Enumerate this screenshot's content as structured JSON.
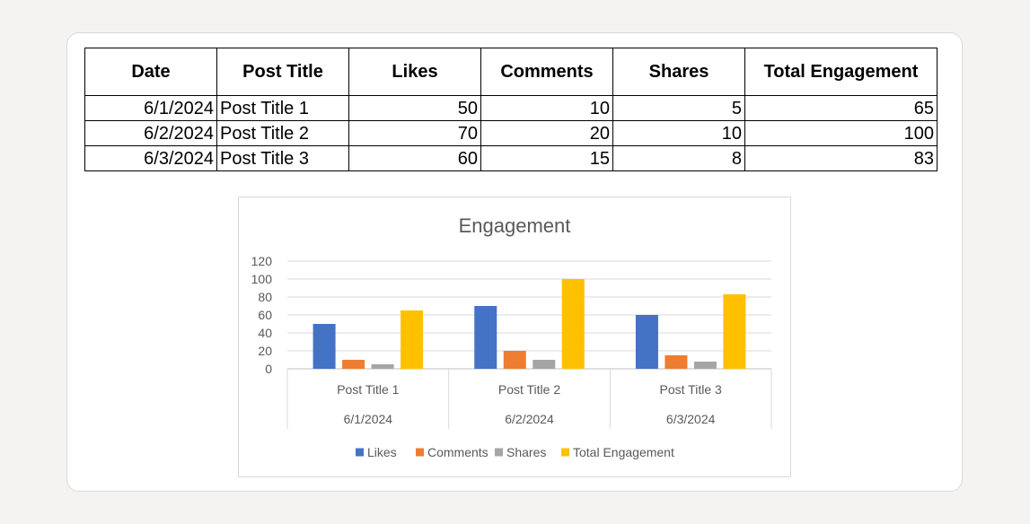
{
  "table": {
    "headers": [
      "Date",
      "Post Title",
      "Likes",
      "Comments",
      "Shares",
      "Total Engagement"
    ],
    "rows": [
      [
        "6/1/2024",
        "Post Title 1",
        "50",
        "10",
        "5",
        "65"
      ],
      [
        "6/2/2024",
        "Post Title 2",
        "70",
        "20",
        "10",
        "100"
      ],
      [
        "6/3/2024",
        "Post Title 3",
        "60",
        "15",
        "8",
        "83"
      ]
    ]
  },
  "chart_data": {
    "type": "bar",
    "title": "Engagement",
    "categories": [
      "Post Title 1",
      "Post Title 2",
      "Post Title 3"
    ],
    "category_dates": [
      "6/1/2024",
      "6/2/2024",
      "6/3/2024"
    ],
    "series": [
      {
        "name": "Likes",
        "values": [
          50,
          70,
          60
        ],
        "color": "#4472c4"
      },
      {
        "name": "Comments",
        "values": [
          10,
          20,
          15
        ],
        "color": "#ed7d31"
      },
      {
        "name": "Shares",
        "values": [
          5,
          10,
          8
        ],
        "color": "#a5a5a5"
      },
      {
        "name": "Total Engagement",
        "values": [
          65,
          100,
          83
        ],
        "color": "#ffc000"
      }
    ],
    "ylim": [
      0,
      120
    ],
    "yticks": [
      0,
      20,
      40,
      60,
      80,
      100,
      120
    ],
    "grid": true,
    "legend": "bottom"
  }
}
